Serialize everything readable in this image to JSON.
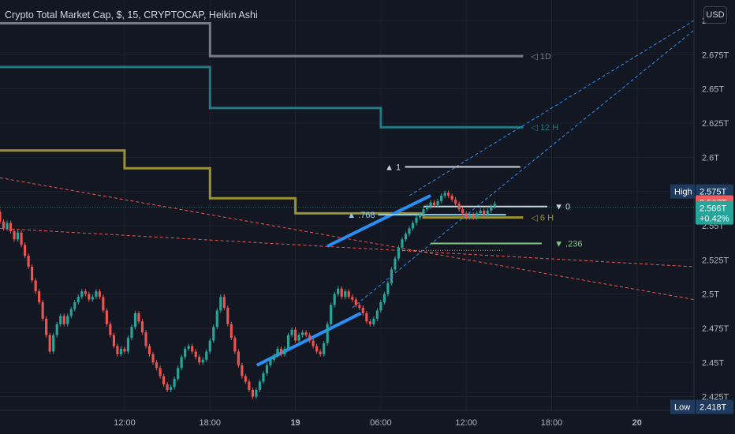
{
  "header": {
    "title": "Crypto Total Market Cap, $, 15, CRYPTOCAP, Heikin Ashi",
    "currency_button": "USD"
  },
  "colors": {
    "background": "#131722",
    "grid": "#1e222d",
    "axis_text": "#b2b5be",
    "up": "#26a69a",
    "down": "#ef5350",
    "ma_gray": "#787b86",
    "ma_teal": "#1f7a83",
    "ma_olive": "#9b9230",
    "channel_blue": "#2a8ef5",
    "fib_white": "#d1d4dc",
    "fib_green": "#81c784",
    "fib_blue": "#90caf9"
  },
  "chart_data": {
    "type": "candlestick",
    "style": "Heikin Ashi",
    "symbol": "CRYPTOCAP:TOTAL",
    "interval": "15",
    "y_axis": {
      "unit": "USD",
      "ticks": [
        "2.7T",
        "2.675T",
        "2.65T",
        "2.625T",
        "2.6T",
        "2.575T",
        "2.55T",
        "2.525T",
        "2.5T",
        "2.475T",
        "2.45T",
        "2.425T"
      ],
      "tick_values": [
        2.7,
        2.675,
        2.65,
        2.625,
        2.6,
        2.575,
        2.55,
        2.525,
        2.5,
        2.475,
        2.45,
        2.425
      ],
      "range": [
        2.415,
        2.715
      ]
    },
    "x_axis": {
      "ticks": [
        "12:00",
        "18:00",
        "19",
        "06:00",
        "12:00",
        "18:00",
        "20"
      ],
      "tick_hours": [
        12,
        18,
        24,
        30,
        36,
        42,
        48
      ],
      "range_hours": [
        3.25,
        52
      ]
    },
    "price_labels": [
      {
        "text": "High",
        "value": "2.575T",
        "price": 2.575,
        "color": "#1e3a5f"
      },
      {
        "text": "",
        "value": "2.567T",
        "price": 2.567,
        "color": "#f05b5b"
      },
      {
        "text": "",
        "value": "2.566T",
        "sub": "+0.42%",
        "price": 2.5635,
        "color": "#26a69a"
      },
      {
        "text": "Low",
        "value": "2.418T",
        "price": 2.4175,
        "color": "#1e3a5f"
      }
    ],
    "moving_averages": [
      {
        "name": "1D",
        "color": "#787b86",
        "points": [
          [
            3.25,
            2.698
          ],
          [
            18,
            2.698
          ],
          [
            18,
            2.674
          ],
          [
            40,
            2.674
          ]
        ]
      },
      {
        "name": "12 H",
        "color": "#1f7a83",
        "points": [
          [
            3.25,
            2.666
          ],
          [
            18,
            2.666
          ],
          [
            18,
            2.636
          ],
          [
            30,
            2.636
          ],
          [
            30,
            2.622
          ],
          [
            40,
            2.622
          ]
        ]
      },
      {
        "name": "6 H",
        "color": "#9b9230",
        "points": [
          [
            3.25,
            2.605
          ],
          [
            12,
            2.605
          ],
          [
            12,
            2.592
          ],
          [
            18,
            2.592
          ],
          [
            18,
            2.57
          ],
          [
            24,
            2.57
          ],
          [
            24,
            2.559
          ],
          [
            33,
            2.559
          ],
          [
            33,
            2.556
          ],
          [
            40,
            2.556
          ]
        ]
      }
    ],
    "fib_levels": [
      {
        "label": "1",
        "price": 2.593,
        "color": "#d1d4dc",
        "marker": "▲"
      },
      {
        "label": "0",
        "price": 2.564,
        "color": "#d1d4dc",
        "marker": "▼"
      },
      {
        "label": ".768",
        "price": 2.558,
        "color": "#90caf9",
        "marker": "▲"
      },
      {
        "label": ".236",
        "price": 2.537,
        "color": "#81c784",
        "marker": "▼"
      }
    ],
    "candles": [
      [
        3.25,
        2.56,
        2.553
      ],
      [
        3.5,
        2.553,
        2.548
      ],
      [
        3.75,
        2.548,
        2.552
      ],
      [
        4,
        2.552,
        2.546
      ],
      [
        4.25,
        2.546,
        2.54
      ],
      [
        4.5,
        2.54,
        2.545
      ],
      [
        4.75,
        2.545,
        2.536
      ],
      [
        5,
        2.536,
        2.528
      ],
      [
        5.25,
        2.528,
        2.52
      ],
      [
        5.5,
        2.52,
        2.51
      ],
      [
        5.75,
        2.51,
        2.502
      ],
      [
        6,
        2.502,
        2.494
      ],
      [
        6.25,
        2.494,
        2.482
      ],
      [
        6.5,
        2.482,
        2.47
      ],
      [
        6.75,
        2.47,
        2.458
      ],
      [
        7,
        2.458,
        2.47
      ],
      [
        7.25,
        2.47,
        2.478
      ],
      [
        7.5,
        2.478,
        2.484
      ],
      [
        7.75,
        2.484,
        2.478
      ],
      [
        8,
        2.478,
        2.484
      ],
      [
        8.25,
        2.484,
        2.489
      ],
      [
        8.5,
        2.489,
        2.494
      ],
      [
        8.75,
        2.494,
        2.498
      ],
      [
        9,
        2.498,
        2.502
      ],
      [
        9.25,
        2.502,
        2.5
      ],
      [
        9.5,
        2.5,
        2.496
      ],
      [
        9.75,
        2.496,
        2.498
      ],
      [
        10,
        2.498,
        2.502
      ],
      [
        10.25,
        2.502,
        2.498
      ],
      [
        10.5,
        2.498,
        2.488
      ],
      [
        10.75,
        2.488,
        2.478
      ],
      [
        11,
        2.478,
        2.47
      ],
      [
        11.25,
        2.47,
        2.462
      ],
      [
        11.5,
        2.462,
        2.456
      ],
      [
        11.75,
        2.456,
        2.46
      ],
      [
        12,
        2.46,
        2.458
      ],
      [
        12.25,
        2.458,
        2.468
      ],
      [
        12.5,
        2.468,
        2.476
      ],
      [
        12.75,
        2.476,
        2.486
      ],
      [
        13,
        2.486,
        2.48
      ],
      [
        13.25,
        2.48,
        2.472
      ],
      [
        13.5,
        2.472,
        2.462
      ],
      [
        13.75,
        2.462,
        2.456
      ],
      [
        14,
        2.456,
        2.45
      ],
      [
        14.25,
        2.45,
        2.446
      ],
      [
        14.5,
        2.446,
        2.44
      ],
      [
        14.75,
        2.44,
        2.434
      ],
      [
        15,
        2.434,
        2.43
      ],
      [
        15.25,
        2.43,
        2.432
      ],
      [
        15.5,
        2.432,
        2.438
      ],
      [
        15.75,
        2.438,
        2.446
      ],
      [
        16,
        2.446,
        2.454
      ],
      [
        16.25,
        2.454,
        2.46
      ],
      [
        16.5,
        2.46,
        2.462
      ],
      [
        16.75,
        2.462,
        2.458
      ],
      [
        17,
        2.458,
        2.454
      ],
      [
        17.25,
        2.454,
        2.45
      ],
      [
        17.5,
        2.45,
        2.452
      ],
      [
        17.75,
        2.452,
        2.458
      ],
      [
        18,
        2.458,
        2.466
      ],
      [
        18.25,
        2.466,
        2.476
      ],
      [
        18.5,
        2.476,
        2.488
      ],
      [
        18.75,
        2.488,
        2.498
      ],
      [
        19,
        2.498,
        2.49
      ],
      [
        19.25,
        2.49,
        2.478
      ],
      [
        19.5,
        2.478,
        2.468
      ],
      [
        19.75,
        2.468,
        2.458
      ],
      [
        20,
        2.458,
        2.448
      ],
      [
        20.25,
        2.448,
        2.44
      ],
      [
        20.5,
        2.44,
        2.436
      ],
      [
        20.75,
        2.436,
        2.43
      ],
      [
        21,
        2.43,
        2.425
      ],
      [
        21.25,
        2.425,
        2.43
      ],
      [
        21.5,
        2.43,
        2.436
      ],
      [
        21.75,
        2.436,
        2.442
      ],
      [
        22,
        2.442,
        2.448
      ],
      [
        22.25,
        2.448,
        2.452
      ],
      [
        22.5,
        2.452,
        2.455
      ],
      [
        22.75,
        2.455,
        2.46
      ],
      [
        23,
        2.46,
        2.456
      ],
      [
        23.25,
        2.456,
        2.46
      ],
      [
        23.5,
        2.46,
        2.47
      ],
      [
        23.75,
        2.47,
        2.474
      ],
      [
        24,
        2.474,
        2.466
      ],
      [
        24.25,
        2.466,
        2.47
      ],
      [
        24.5,
        2.47,
        2.472
      ],
      [
        24.75,
        2.472,
        2.47
      ],
      [
        25,
        2.47,
        2.466
      ],
      [
        25.25,
        2.466,
        2.462
      ],
      [
        25.5,
        2.462,
        2.458
      ],
      [
        25.75,
        2.458,
        2.456
      ],
      [
        26,
        2.456,
        2.464
      ],
      [
        26.25,
        2.464,
        2.478
      ],
      [
        26.5,
        2.478,
        2.492
      ],
      [
        26.75,
        2.492,
        2.5
      ],
      [
        27,
        2.5,
        2.504
      ],
      [
        27.25,
        2.504,
        2.498
      ],
      [
        27.5,
        2.498,
        2.502
      ],
      [
        27.75,
        2.502,
        2.498
      ],
      [
        28,
        2.498,
        2.496
      ],
      [
        28.25,
        2.496,
        2.492
      ],
      [
        28.5,
        2.492,
        2.49
      ],
      [
        28.75,
        2.49,
        2.486
      ],
      [
        29,
        2.486,
        2.48
      ],
      [
        29.25,
        2.48,
        2.478
      ],
      [
        29.5,
        2.478,
        2.482
      ],
      [
        29.75,
        2.482,
        2.488
      ],
      [
        30,
        2.488,
        2.494
      ],
      [
        30.25,
        2.494,
        2.5
      ],
      [
        30.5,
        2.5,
        2.508
      ],
      [
        30.75,
        2.508,
        2.518
      ],
      [
        31,
        2.518,
        2.526
      ],
      [
        31.25,
        2.526,
        2.534
      ],
      [
        31.5,
        2.534,
        2.54
      ],
      [
        31.75,
        2.54,
        2.544
      ],
      [
        32,
        2.544,
        2.548
      ],
      [
        32.25,
        2.548,
        2.552
      ],
      [
        32.5,
        2.552,
        2.556
      ],
      [
        32.75,
        2.556,
        2.558
      ],
      [
        33,
        2.558,
        2.562
      ],
      [
        33.25,
        2.562,
        2.564
      ],
      [
        33.5,
        2.564,
        2.567
      ],
      [
        33.75,
        2.567,
        2.565
      ],
      [
        34,
        2.565,
        2.568
      ],
      [
        34.25,
        2.568,
        2.572
      ],
      [
        34.5,
        2.572,
        2.574
      ],
      [
        34.75,
        2.574,
        2.572
      ],
      [
        35,
        2.572,
        2.569
      ],
      [
        35.25,
        2.569,
        2.566
      ],
      [
        35.5,
        2.566,
        2.562
      ],
      [
        35.75,
        2.562,
        2.559
      ],
      [
        36,
        2.559,
        2.556
      ],
      [
        36.25,
        2.556,
        2.558
      ],
      [
        36.5,
        2.558,
        2.556
      ],
      [
        36.75,
        2.556,
        2.559
      ],
      [
        37,
        2.559,
        2.561
      ],
      [
        37.25,
        2.561,
        2.558
      ],
      [
        37.5,
        2.558,
        2.561
      ],
      [
        37.75,
        2.561,
        2.564
      ],
      [
        38,
        2.564,
        2.566
      ]
    ]
  }
}
